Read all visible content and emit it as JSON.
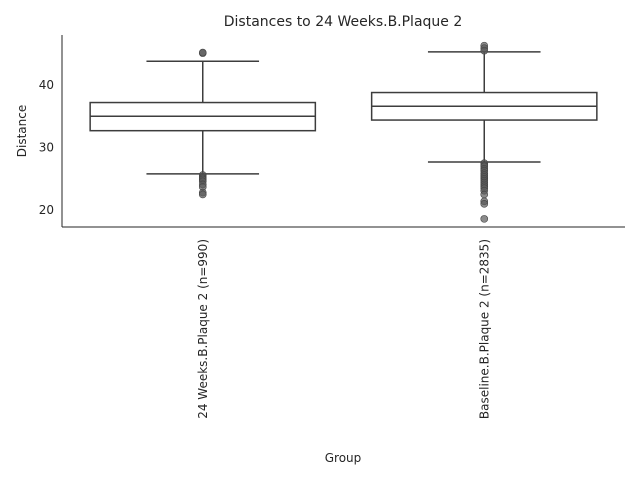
{
  "chart_data": {
    "type": "box",
    "title": "Distances to 24 Weeks.B.Plaque 2",
    "xlabel": "Group",
    "ylabel": "Distance",
    "ylim": [
      17.3,
      48.0
    ],
    "yticks": [
      20,
      30,
      40
    ],
    "grid": false,
    "categories": [
      "24 Weeks.B.Plaque 2 (n=990)",
      "Baseline.B.Plaque 2 (n=2835)"
    ],
    "boxes": [
      {
        "q1": 32.7,
        "median": 35.0,
        "q3": 37.2,
        "whisker_low": 25.8,
        "whisker_high": 43.8,
        "outliers": [
          45.1,
          45.2,
          25.6,
          25.3,
          25.1,
          24.9,
          24.6,
          24.1,
          23.7,
          22.8,
          22.5
        ]
      },
      {
        "q1": 34.4,
        "median": 36.6,
        "q3": 38.8,
        "whisker_low": 27.7,
        "whisker_high": 45.3,
        "outliers": [
          46.3,
          45.9,
          45.5,
          27.5,
          27.2,
          27.0,
          26.6,
          26.3,
          25.9,
          25.6,
          25.3,
          25.0,
          24.7,
          24.4,
          24.1,
          23.8,
          23.5,
          23.1,
          22.5,
          21.4,
          21.0,
          18.6
        ]
      }
    ],
    "colors": {
      "box_edge": "#3d3d3d",
      "box_fill": "#ffffff",
      "outlier": "#5a5a5a",
      "axis": "#262626"
    }
  }
}
